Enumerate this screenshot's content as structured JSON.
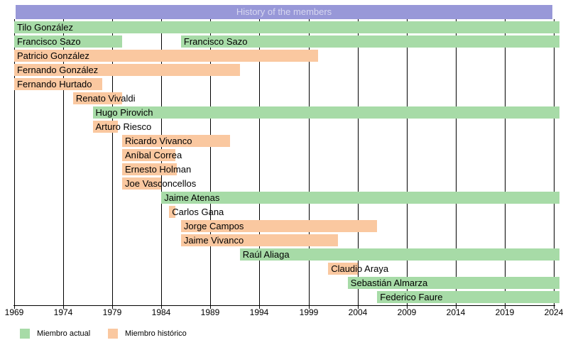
{
  "chart_data": {
    "type": "bar",
    "variant": "horizontal-timeline-gantt",
    "title": "History of the members",
    "xlabel": "",
    "ylabel": "",
    "xlim": [
      1969,
      2024
    ],
    "x_ticks": [
      1969,
      1974,
      1979,
      1984,
      1989,
      1994,
      1999,
      2004,
      2009,
      2014,
      2019,
      2024
    ],
    "grid": true,
    "legend_position": "bottom-left",
    "colors": {
      "current": "#a7dba7",
      "historic": "#fac8a0",
      "title_bg": "#9898d8",
      "title_text": "#d7d7f0",
      "grid": "#000000",
      "axis": "#000000",
      "bar_text": "#000000"
    },
    "legend": [
      {
        "status": "current",
        "label": "Miembro actual"
      },
      {
        "status": "historic",
        "label": "Miembro histórico"
      }
    ],
    "members": [
      {
        "name": "Tilo González",
        "status": "current",
        "segments": [
          {
            "from": 1969,
            "to": 2024
          }
        ]
      },
      {
        "name": "Francisco Sazo",
        "status": "current",
        "segments": [
          {
            "from": 1969,
            "to": 1980
          },
          {
            "from": 1986,
            "to": 2024
          }
        ]
      },
      {
        "name": "Patricio González",
        "status": "historic",
        "segments": [
          {
            "from": 1969,
            "to": 2000
          }
        ]
      },
      {
        "name": "Fernando González",
        "status": "historic",
        "segments": [
          {
            "from": 1969,
            "to": 1992
          }
        ]
      },
      {
        "name": "Fernando Hurtado",
        "status": "historic",
        "segments": [
          {
            "from": 1969,
            "to": 1978
          }
        ]
      },
      {
        "name": "Renato Vivaldi",
        "status": "historic",
        "segments": [
          {
            "from": 1975,
            "to": 1980
          }
        ]
      },
      {
        "name": "Hugo Pirovich",
        "status": "current",
        "segments": [
          {
            "from": 1977,
            "to": 2024
          }
        ]
      },
      {
        "name": "Arturo Riesco",
        "status": "historic",
        "segments": [
          {
            "from": 1977,
            "to": 1979.6
          }
        ]
      },
      {
        "name": "Ricardo Vivanco",
        "status": "historic",
        "segments": [
          {
            "from": 1980,
            "to": 1991
          }
        ]
      },
      {
        "name": "Aníbal Correa",
        "status": "historic",
        "segments": [
          {
            "from": 1980,
            "to": 1985.4
          }
        ]
      },
      {
        "name": "Ernesto Holman",
        "status": "historic",
        "segments": [
          {
            "from": 1980,
            "to": 1985.6
          }
        ]
      },
      {
        "name": "Joe Vasconcellos",
        "status": "historic",
        "segments": [
          {
            "from": 1980,
            "to": 1984
          }
        ]
      },
      {
        "name": "Jaime Atenas",
        "status": "current",
        "segments": [
          {
            "from": 1984,
            "to": 2024
          }
        ]
      },
      {
        "name": "Carlos Gana",
        "status": "historic",
        "segments": [
          {
            "from": 1984.8,
            "to": 1985.4
          }
        ]
      },
      {
        "name": "Jorge Campos",
        "status": "historic",
        "segments": [
          {
            "from": 1986,
            "to": 2006
          }
        ]
      },
      {
        "name": "Jaime Vivanco",
        "status": "historic",
        "segments": [
          {
            "from": 1986,
            "to": 2002
          }
        ]
      },
      {
        "name": "Raúl Aliaga",
        "status": "current",
        "segments": [
          {
            "from": 1992,
            "to": 2024
          }
        ]
      },
      {
        "name": "Claudio Araya",
        "status": "historic",
        "segments": [
          {
            "from": 2001,
            "to": 2004
          }
        ]
      },
      {
        "name": "Sebastián Almarza",
        "status": "current",
        "segments": [
          {
            "from": 2003,
            "to": 2024
          }
        ]
      },
      {
        "name": "Federico Faure",
        "status": "current",
        "segments": [
          {
            "from": 2006,
            "to": 2024
          }
        ]
      }
    ]
  }
}
